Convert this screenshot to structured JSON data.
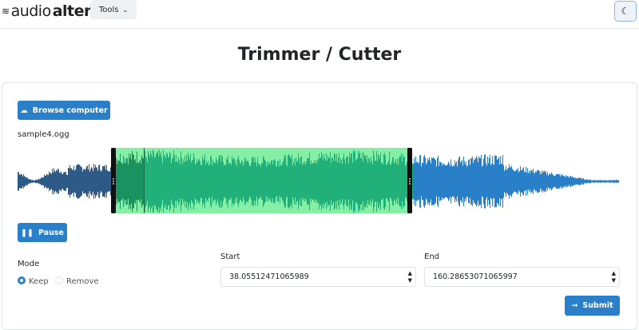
{
  "nav": {
    "logo_light": "audio",
    "logo_bold": "alter",
    "tools_label": "Tools",
    "theme_icon": "moon-icon"
  },
  "page_title": "Trimmer / Cutter",
  "browse_label": "Browse computer",
  "file_name": "sample4.ogg",
  "pause_label": "Pause",
  "mode": {
    "label": "Mode",
    "options": [
      "Keep",
      "Remove"
    ],
    "selected": "Keep"
  },
  "start": {
    "label": "Start",
    "value": "38.05512471065989"
  },
  "end": {
    "label": "End",
    "value": "160.28653071065997"
  },
  "submit_label": "Submit",
  "colors": {
    "accent": "#2a7fc9",
    "wave_unselected_played": "#2d5a87",
    "wave_unselected": "#2a7fc9",
    "selection_bg": "#86efa6",
    "wave_selected": "#22b07a",
    "wave_selected_played": "#1a9361"
  }
}
